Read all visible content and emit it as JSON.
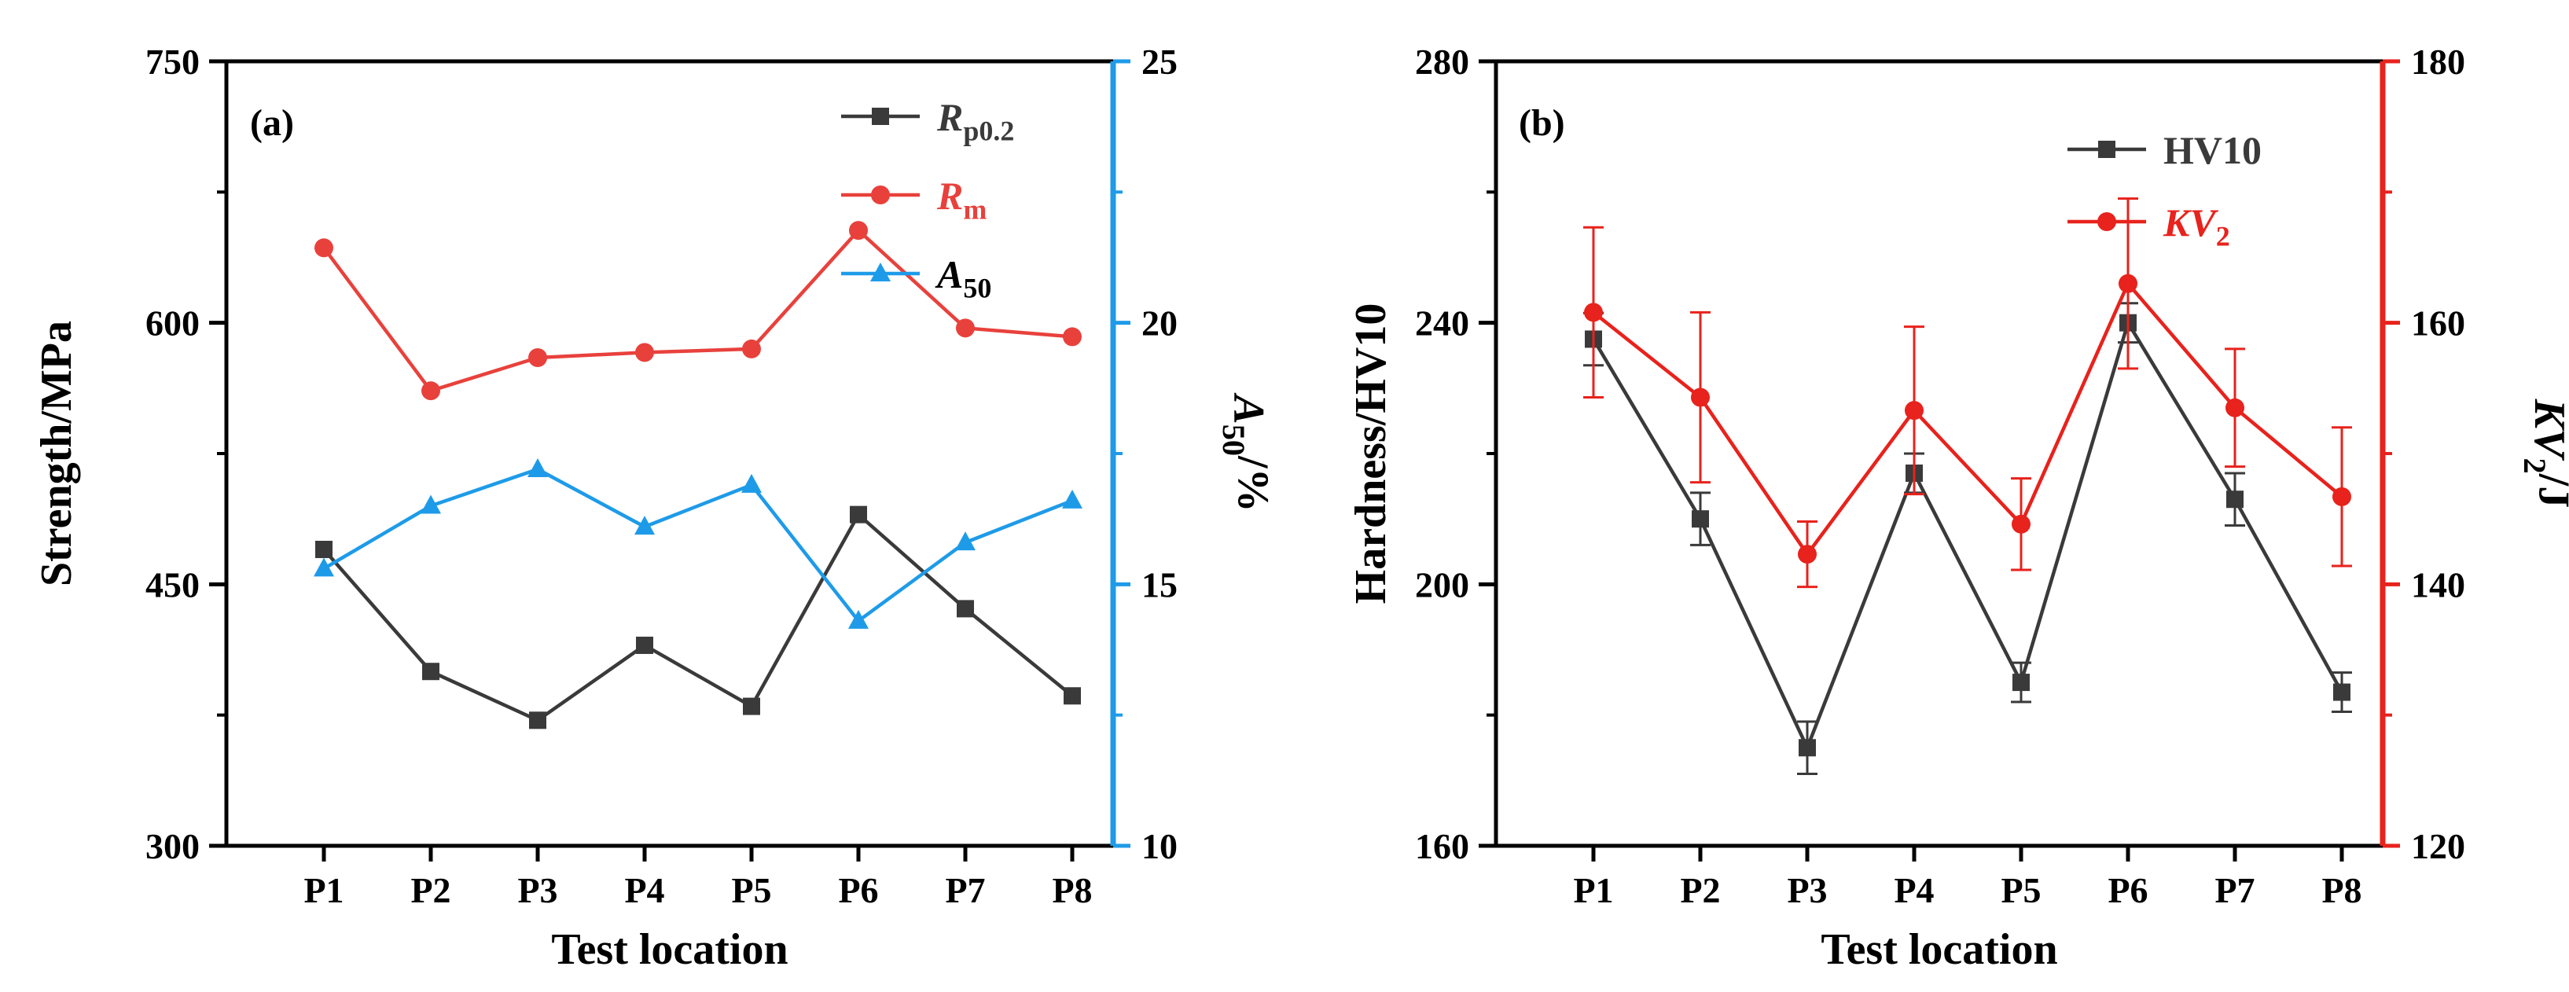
{
  "chart_data": [
    {
      "panel_label": "(a)",
      "type": "line",
      "categories": [
        "P1",
        "P2",
        "P3",
        "P4",
        "P5",
        "P6",
        "P7",
        "P8"
      ],
      "xlabel": "Test location",
      "ylabel": "Strength/MPa",
      "ylim": [
        300,
        750
      ],
      "yticks": [
        "300",
        "450",
        "600",
        "750"
      ],
      "y2label_main": "A",
      "y2label_sub": "50",
      "y2label_rest": "/%",
      "y2lim": [
        10,
        25
      ],
      "y2ticks": [
        "10",
        "15",
        "20",
        "25"
      ],
      "legend_position": "top-right",
      "series": [
        {
          "name": "R",
          "name_sub": "p0.2",
          "axis": "left",
          "color": "#3a3a3a",
          "marker": "square",
          "values": [
            470,
            400,
            372,
            415,
            380,
            490,
            436,
            386
          ]
        },
        {
          "name": "R",
          "name_sub": "m",
          "axis": "left",
          "color": "#e8413c",
          "marker": "circle",
          "values": [
            643,
            561,
            580,
            583,
            585,
            653,
            597,
            592
          ]
        },
        {
          "name": "A",
          "name_sub": "50",
          "axis": "right",
          "color": "#1e9be8",
          "marker": "triangle",
          "values": [
            15.3,
            16.5,
            17.2,
            16.1,
            16.9,
            14.3,
            15.8,
            16.6
          ]
        }
      ]
    },
    {
      "panel_label": "(b)",
      "type": "line",
      "categories": [
        "P1",
        "P2",
        "P3",
        "P4",
        "P5",
        "P6",
        "P7",
        "P8"
      ],
      "xlabel": "Test location",
      "ylabel": "Hardness/HV10",
      "ylim": [
        160,
        280
      ],
      "yticks": [
        "160",
        "200",
        "240",
        "280"
      ],
      "y2label_main": "KV",
      "y2label_sub": "2",
      "y2label_rest": "/J",
      "y2lim": [
        120,
        180
      ],
      "y2ticks": [
        "120",
        "140",
        "160",
        "180"
      ],
      "legend_position": "top-right",
      "series": [
        {
          "name": "HV10",
          "name_sub": "",
          "axis": "left",
          "color": "#3a3a3a",
          "marker": "square",
          "values": [
            237.5,
            210,
            175,
            217,
            185,
            240,
            213,
            183.5
          ],
          "errors": [
            4,
            4,
            4,
            3,
            3,
            3,
            4,
            3
          ]
        },
        {
          "name": "KV",
          "name_sub": "2",
          "axis": "right",
          "color": "#e8221c",
          "marker": "circle",
          "values": [
            160.8,
            154.3,
            142.3,
            153.3,
            144.6,
            163,
            153.5,
            146.7
          ],
          "errors": [
            6.5,
            6.5,
            2.5,
            6.4,
            3.5,
            6.5,
            4.5,
            5.3
          ]
        }
      ]
    }
  ]
}
